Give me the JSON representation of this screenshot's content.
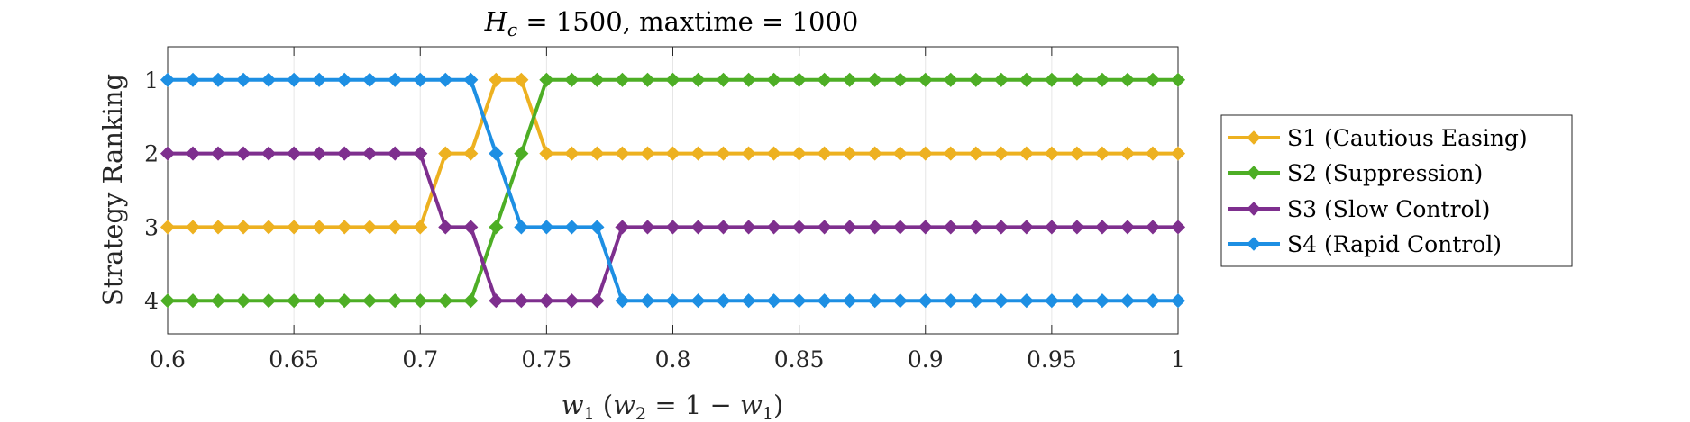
{
  "chart_data": {
    "type": "line",
    "title": "H_c = 1500, maxtime = 1000",
    "title_parts": {
      "var": "H",
      "sub": "c",
      "rest": " = 1500, maxtime = 1000"
    },
    "xlabel": "w1 (w2 = 1 − w1)",
    "xlabel_parts": {
      "a": "w",
      "a_sub": "1",
      "open": " (",
      "b": "w",
      "b_sub": "2",
      "mid": " = 1 − ",
      "c": "w",
      "c_sub": "1",
      "close": ")"
    },
    "ylabel": "Strategy Ranking",
    "xlim": [
      0.6,
      1.0
    ],
    "ylim": [
      0.55,
      4.45
    ],
    "y_reversed": true,
    "x_ticks": [
      0.6,
      0.65,
      0.7,
      0.75,
      0.8,
      0.85,
      0.9,
      0.95,
      1
    ],
    "x_tick_labels": [
      "0.6",
      "0.65",
      "0.7",
      "0.75",
      "0.8",
      "0.85",
      "0.9",
      "0.95",
      "1"
    ],
    "y_ticks": [
      1,
      2,
      3,
      4
    ],
    "y_tick_labels": [
      "1",
      "2",
      "3",
      "4"
    ],
    "grid": "vertical",
    "legend_position": "outside-right",
    "x": [
      0.6,
      0.61,
      0.62,
      0.63,
      0.64,
      0.65,
      0.66,
      0.67,
      0.68,
      0.69,
      0.7,
      0.71,
      0.72,
      0.73,
      0.74,
      0.75,
      0.76,
      0.77,
      0.78,
      0.79,
      0.8,
      0.81,
      0.82,
      0.83,
      0.84,
      0.85,
      0.86,
      0.87,
      0.88,
      0.89,
      0.9,
      0.91,
      0.92,
      0.93,
      0.94,
      0.95,
      0.96,
      0.97,
      0.98,
      0.99,
      1.0
    ],
    "series": [
      {
        "name": "S1 (Cautious Easing)",
        "color": "#EDB120",
        "values": [
          3,
          3,
          3,
          3,
          3,
          3,
          3,
          3,
          3,
          3,
          3,
          2,
          2,
          1,
          1,
          2,
          2,
          2,
          2,
          2,
          2,
          2,
          2,
          2,
          2,
          2,
          2,
          2,
          2,
          2,
          2,
          2,
          2,
          2,
          2,
          2,
          2,
          2,
          2,
          2,
          2
        ]
      },
      {
        "name": "S2 (Suppression)",
        "color": "#4DAE25",
        "values": [
          4,
          4,
          4,
          4,
          4,
          4,
          4,
          4,
          4,
          4,
          4,
          4,
          4,
          3,
          2,
          1,
          1,
          1,
          1,
          1,
          1,
          1,
          1,
          1,
          1,
          1,
          1,
          1,
          1,
          1,
          1,
          1,
          1,
          1,
          1,
          1,
          1,
          1,
          1,
          1,
          1
        ]
      },
      {
        "name": "S3 (Slow Control)",
        "color": "#7E2F8E",
        "values": [
          2,
          2,
          2,
          2,
          2,
          2,
          2,
          2,
          2,
          2,
          2,
          3,
          3,
          4,
          4,
          4,
          4,
          4,
          3,
          3,
          3,
          3,
          3,
          3,
          3,
          3,
          3,
          3,
          3,
          3,
          3,
          3,
          3,
          3,
          3,
          3,
          3,
          3,
          3,
          3,
          3
        ]
      },
      {
        "name": "S4 (Rapid Control)",
        "color": "#1D8FE3",
        "values": [
          1,
          1,
          1,
          1,
          1,
          1,
          1,
          1,
          1,
          1,
          1,
          1,
          1,
          2,
          3,
          3,
          3,
          3,
          4,
          4,
          4,
          4,
          4,
          4,
          4,
          4,
          4,
          4,
          4,
          4,
          4,
          4,
          4,
          4,
          4,
          4,
          4,
          4,
          4,
          4,
          4
        ]
      }
    ]
  }
}
